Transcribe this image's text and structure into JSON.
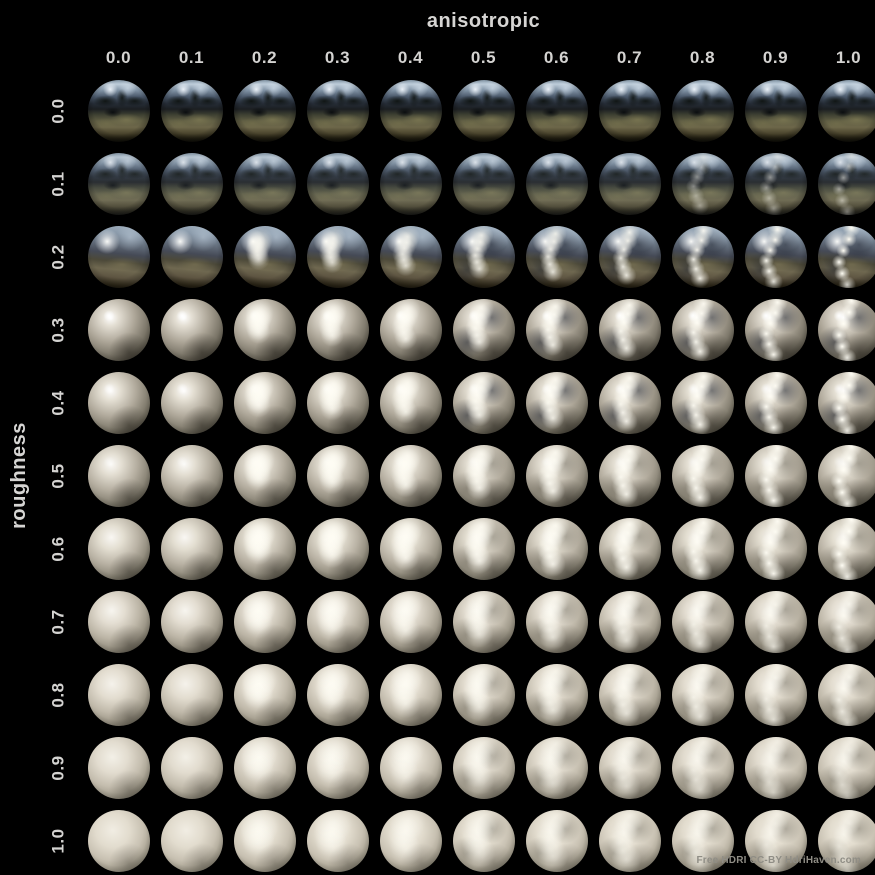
{
  "axes": {
    "x_label": "anisotropic",
    "y_label": "roughness"
  },
  "column_labels": [
    "0.0",
    "0.1",
    "0.2",
    "0.3",
    "0.4",
    "0.5",
    "0.6",
    "0.7",
    "0.8",
    "0.9",
    "1.0"
  ],
  "row_labels": [
    "0.0",
    "0.1",
    "0.2",
    "0.3",
    "0.4",
    "0.5",
    "0.6",
    "0.7",
    "0.8",
    "0.9",
    "1.0"
  ],
  "credit": "Free HDRI CC-BY HdriHaven.com",
  "colors": {
    "background": "#000000",
    "label_text": "#d4d3d1",
    "credit_text": "#8f8d85"
  },
  "chart_data": {
    "type": "heatmap",
    "title": "anisotropic",
    "xlabel": "anisotropic",
    "ylabel": "roughness",
    "x": [
      0.0,
      0.1,
      0.2,
      0.3,
      0.4,
      0.5,
      0.6,
      0.7,
      0.8,
      0.9,
      1.0
    ],
    "y": [
      0.0,
      0.1,
      0.2,
      0.3,
      0.4,
      0.5,
      0.6,
      0.7,
      0.8,
      0.9,
      1.0
    ],
    "cells": "11x11 grid of rendered metal spheres; each cell previews a material with the given roughness (row) and anisotropic (column) values under outdoor HDRI lighting. Low roughness rows mirror the environment; higher roughness rows become matte cream spheres; increasing anisotropy stretches the specular highlight into an S-shaped vertical streak.",
    "legend_position": "none",
    "grid_lines": false
  }
}
